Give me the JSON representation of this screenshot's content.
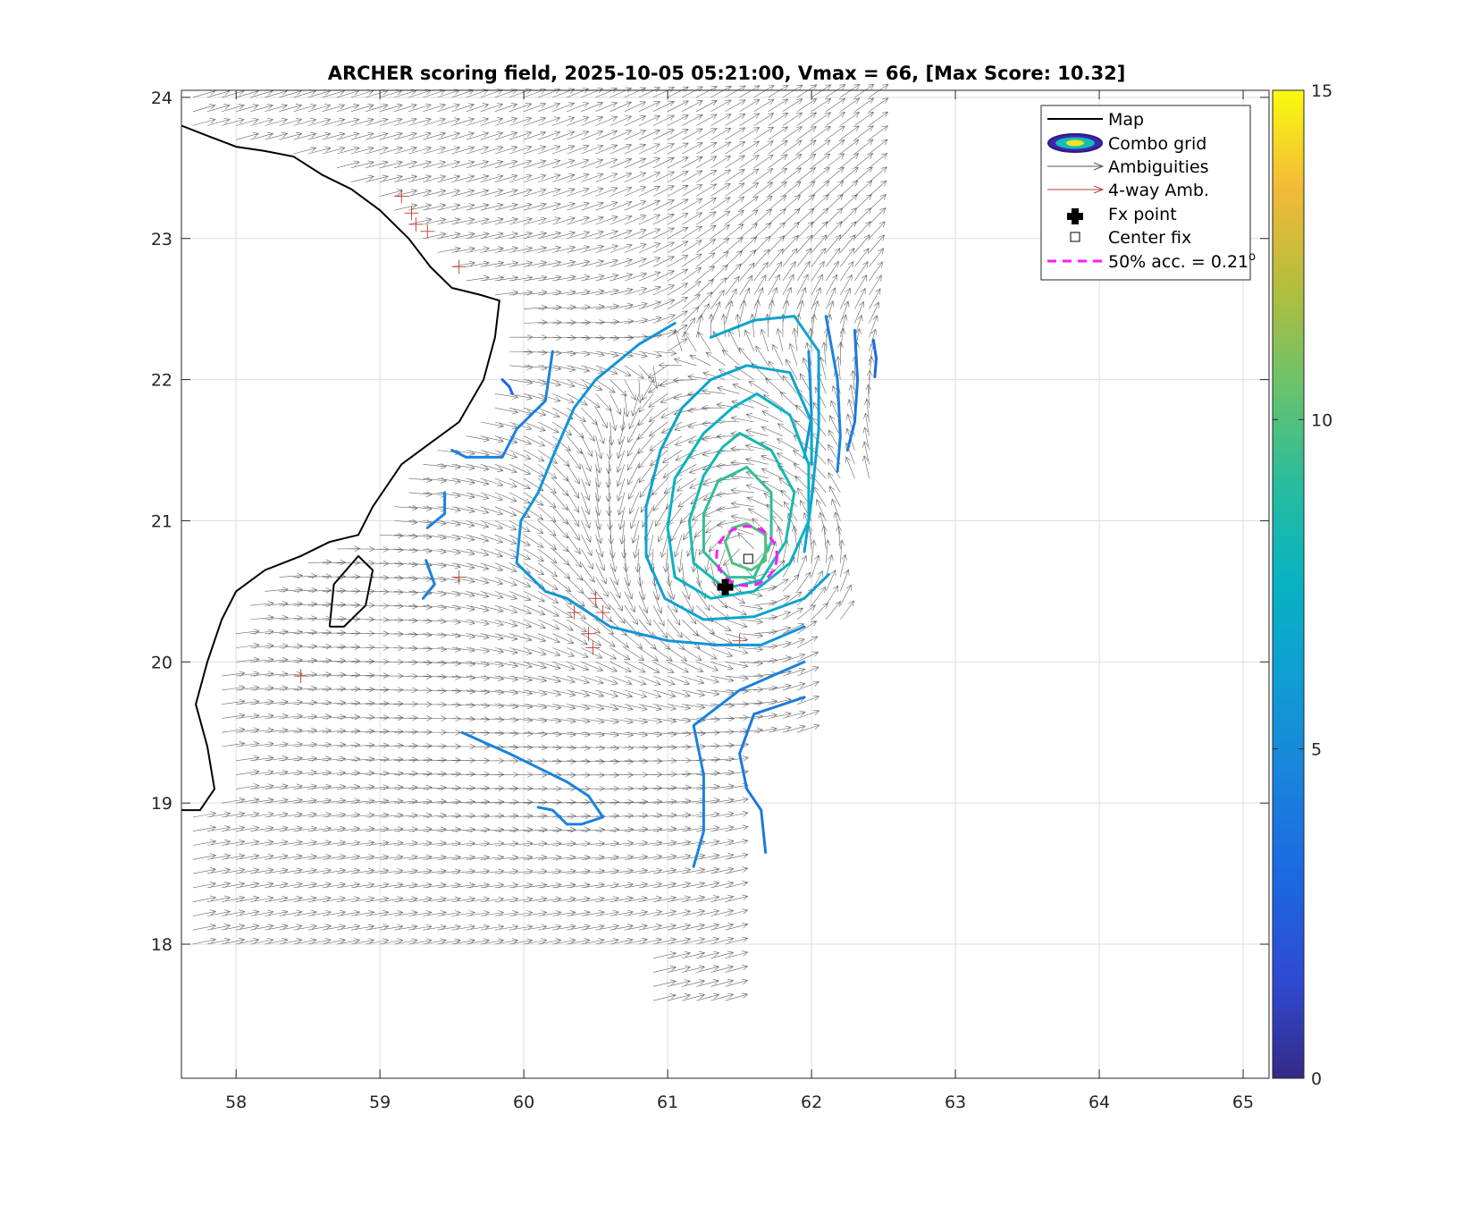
{
  "chart_data": {
    "type": "scatter",
    "title": "ARCHER scoring field, 2025-10-05 05:21:00, Vmax = 66, [Max Score: 10.32]",
    "xlabel": "",
    "ylabel": "",
    "xlim": [
      57.62,
      65.18
    ],
    "ylim": [
      17.05,
      24.05
    ],
    "x_ticks": [
      58,
      59,
      60,
      61,
      62,
      63,
      64,
      65
    ],
    "y_ticks": [
      18,
      19,
      20,
      21,
      22,
      23,
      24
    ],
    "grid": true,
    "colorbar": {
      "min": 0,
      "max": 15,
      "ticks": [
        0,
        5,
        10,
        15
      ],
      "colormap": "parula"
    },
    "legend": {
      "placement": "top-right",
      "entries": [
        {
          "key": "map",
          "label": "Map"
        },
        {
          "key": "combo",
          "label": "Combo grid"
        },
        {
          "key": "amb",
          "label": "Ambiguities"
        },
        {
          "key": "amb4",
          "label": "4-way Amb."
        },
        {
          "key": "fx",
          "label": "Fx point"
        },
        {
          "key": "center",
          "label": "Center fix"
        },
        {
          "key": "acc",
          "label": "50% acc. = 0.21",
          "superscript": "o"
        }
      ]
    },
    "fx_point": {
      "lon": 61.4,
      "lat": 20.53
    },
    "center_fix": {
      "lon": 61.56,
      "lat": 20.73
    },
    "acc_circle": {
      "lon": 61.55,
      "lat": 20.75,
      "radius_deg": 0.21
    },
    "coastline": [
      [
        [
          57.62,
          23.8
        ],
        [
          57.82,
          23.72
        ],
        [
          58.0,
          23.65
        ],
        [
          58.2,
          23.62
        ],
        [
          58.4,
          23.58
        ],
        [
          58.6,
          23.45
        ],
        [
          58.8,
          23.35
        ],
        [
          59.0,
          23.2
        ],
        [
          59.2,
          23.0
        ],
        [
          59.35,
          22.8
        ],
        [
          59.5,
          22.65
        ],
        [
          59.7,
          22.6
        ],
        [
          59.83,
          22.56
        ],
        [
          59.8,
          22.3
        ],
        [
          59.72,
          22.0
        ],
        [
          59.55,
          21.7
        ],
        [
          59.35,
          21.55
        ],
        [
          59.15,
          21.4
        ],
        [
          58.95,
          21.1
        ],
        [
          58.85,
          20.9
        ],
        [
          58.65,
          20.85
        ],
        [
          58.45,
          20.75
        ],
        [
          58.2,
          20.65
        ],
        [
          58.0,
          20.5
        ],
        [
          57.9,
          20.3
        ],
        [
          57.8,
          20.0
        ],
        [
          57.72,
          19.7
        ],
        [
          57.8,
          19.4
        ],
        [
          57.85,
          19.1
        ],
        [
          57.75,
          18.95
        ],
        [
          57.62,
          18.95
        ]
      ],
      [
        [
          58.65,
          20.25
        ],
        [
          58.68,
          20.55
        ],
        [
          58.85,
          20.75
        ],
        [
          58.95,
          20.65
        ],
        [
          58.9,
          20.4
        ],
        [
          58.75,
          20.25
        ],
        [
          58.65,
          20.25
        ]
      ]
    ],
    "contours": [
      {
        "level": 3.0,
        "segments": [
          [
            [
              62.43,
              22.28
            ],
            [
              62.45,
              22.15
            ],
            [
              62.44,
              22.02
            ]
          ],
          [
            [
              59.85,
              22.0
            ],
            [
              59.9,
              21.95
            ],
            [
              59.92,
              21.9
            ]
          ]
        ]
      },
      {
        "level": 4.0,
        "segments": [
          [
            [
              62.3,
              22.35
            ],
            [
              62.32,
              22.0
            ],
            [
              62.3,
              21.7
            ],
            [
              62.25,
              21.5
            ]
          ],
          [
            [
              61.95,
              19.75
            ],
            [
              61.6,
              19.63
            ],
            [
              61.5,
              19.35
            ],
            [
              61.55,
              19.1
            ],
            [
              61.65,
              18.95
            ],
            [
              61.68,
              18.65
            ]
          ]
        ]
      },
      {
        "level": 4.5,
        "segments": [
          [
            [
              62.1,
              22.45
            ],
            [
              62.18,
              22.0
            ],
            [
              62.2,
              21.6
            ],
            [
              62.18,
              21.35
            ]
          ],
          [
            [
              61.95,
              20.0
            ],
            [
              61.5,
              19.8
            ],
            [
              61.18,
              19.55
            ],
            [
              61.25,
              19.2
            ],
            [
              61.25,
              18.8
            ],
            [
              61.18,
              18.55
            ]
          ],
          [
            [
              60.2,
              22.2
            ],
            [
              60.15,
              21.85
            ],
            [
              59.95,
              21.65
            ],
            [
              59.85,
              21.45
            ],
            [
              59.6,
              21.45
            ],
            [
              59.5,
              21.5
            ]
          ],
          [
            [
              59.45,
              21.2
            ],
            [
              59.45,
              21.05
            ],
            [
              59.33,
              20.95
            ]
          ],
          [
            [
              59.32,
              20.72
            ],
            [
              59.38,
              20.55
            ],
            [
              59.3,
              20.45
            ]
          ],
          [
            [
              59.57,
              19.5
            ],
            [
              59.9,
              19.35
            ],
            [
              60.1,
              19.25
            ],
            [
              60.3,
              19.15
            ],
            [
              60.45,
              19.05
            ],
            [
              60.55,
              18.9
            ],
            [
              60.4,
              18.85
            ],
            [
              60.3,
              18.85
            ],
            [
              60.2,
              18.95
            ],
            [
              60.1,
              18.97
            ]
          ]
        ]
      },
      {
        "level": 5.5,
        "segments": [
          [
            [
              61.98,
              22.2
            ],
            [
              62.0,
              21.75
            ],
            [
              61.95,
              21.45
            ]
          ],
          [
            [
              61.95,
              20.25
            ],
            [
              61.65,
              20.12
            ],
            [
              61.35,
              20.12
            ],
            [
              61.0,
              20.15
            ],
            [
              60.6,
              20.25
            ],
            [
              60.3,
              20.45
            ],
            [
              60.15,
              20.5
            ],
            [
              59.95,
              20.7
            ],
            [
              59.98,
              21.0
            ],
            [
              60.1,
              21.2
            ],
            [
              60.2,
              21.45
            ],
            [
              60.35,
              21.8
            ],
            [
              60.5,
              22.0
            ],
            [
              60.8,
              22.25
            ],
            [
              61.05,
              22.4
            ]
          ]
        ]
      },
      {
        "level": 6.5,
        "segments": [
          [
            [
              61.3,
              22.3
            ],
            [
              61.6,
              22.42
            ],
            [
              61.88,
              22.45
            ],
            [
              62.05,
              22.2
            ],
            [
              62.05,
              21.65
            ],
            [
              62.0,
              21.15
            ],
            [
              61.95,
              20.78
            ]
          ],
          [
            [
              62.12,
              20.62
            ],
            [
              61.95,
              20.45
            ],
            [
              61.6,
              20.32
            ],
            [
              61.25,
              20.3
            ],
            [
              60.98,
              20.45
            ],
            [
              60.85,
              20.75
            ],
            [
              60.85,
              21.1
            ],
            [
              60.95,
              21.5
            ],
            [
              61.1,
              21.8
            ],
            [
              61.3,
              22.0
            ],
            [
              61.55,
              22.1
            ],
            [
              61.85,
              22.05
            ],
            [
              62.0,
              21.7
            ],
            [
              62.0,
              21.4
            ]
          ]
        ]
      },
      {
        "level": 7.5,
        "segments": [
          [
            [
              61.62,
              21.9
            ],
            [
              61.85,
              21.75
            ],
            [
              61.98,
              21.4
            ],
            [
              61.98,
              21.0
            ],
            [
              61.85,
              20.7
            ],
            [
              61.6,
              20.5
            ],
            [
              61.3,
              20.45
            ],
            [
              61.05,
              20.6
            ],
            [
              61.0,
              20.95
            ],
            [
              61.05,
              21.3
            ],
            [
              61.25,
              21.62
            ],
            [
              61.45,
              21.8
            ],
            [
              61.62,
              21.9
            ]
          ]
        ]
      },
      {
        "level": 8.3,
        "segments": [
          [
            [
              61.5,
              21.62
            ],
            [
              61.72,
              21.5
            ],
            [
              61.88,
              21.2
            ],
            [
              61.82,
              20.85
            ],
            [
              61.65,
              20.58
            ],
            [
              61.4,
              20.52
            ],
            [
              61.18,
              20.7
            ],
            [
              61.15,
              21.0
            ],
            [
              61.25,
              21.32
            ],
            [
              61.38,
              21.52
            ],
            [
              61.5,
              21.62
            ]
          ]
        ]
      },
      {
        "level": 9.2,
        "segments": [
          [
            [
              61.55,
              21.38
            ],
            [
              61.72,
              21.2
            ],
            [
              61.72,
              20.85
            ],
            [
              61.6,
              20.6
            ],
            [
              61.42,
              20.6
            ],
            [
              61.25,
              20.78
            ],
            [
              61.25,
              21.05
            ],
            [
              61.35,
              21.28
            ],
            [
              61.55,
              21.38
            ]
          ]
        ]
      },
      {
        "level": 9.9,
        "segments": [
          [
            [
              61.55,
              20.98
            ],
            [
              61.68,
              20.9
            ],
            [
              61.68,
              20.72
            ],
            [
              61.58,
              20.65
            ],
            [
              61.45,
              20.7
            ],
            [
              61.4,
              20.85
            ],
            [
              61.45,
              20.95
            ],
            [
              61.55,
              20.98
            ]
          ]
        ]
      }
    ],
    "four_way_ambiguities": [
      [
        59.15,
        23.3
      ],
      [
        59.22,
        23.18
      ],
      [
        59.25,
        23.1
      ],
      [
        59.33,
        23.05
      ],
      [
        59.55,
        22.8
      ],
      [
        59.55,
        20.6
      ],
      [
        60.35,
        20.35
      ],
      [
        60.45,
        20.2
      ],
      [
        60.5,
        20.45
      ],
      [
        60.55,
        20.35
      ],
      [
        60.48,
        20.1
      ],
      [
        61.5,
        20.15
      ],
      [
        58.45,
        19.9
      ]
    ]
  }
}
